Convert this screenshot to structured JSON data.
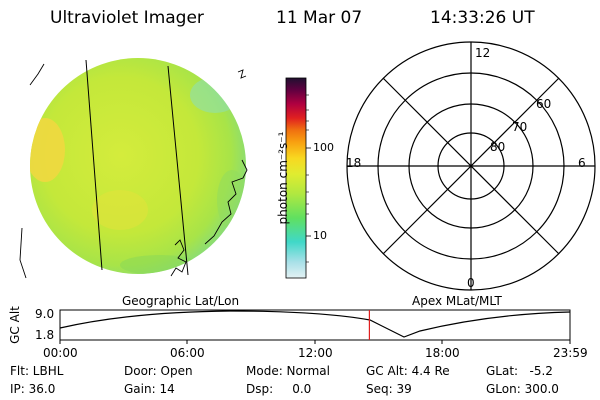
{
  "header": {
    "instrument": "Ultraviolet Imager",
    "date": "11 Mar 07",
    "time": "14:33:26 UT"
  },
  "colors": {
    "earth_base": "#c8ea3a",
    "colorbar": [
      "#d8ecf0",
      "#a8e0e8",
      "#40d8c8",
      "#60e060",
      "#b0e840",
      "#e0ec30",
      "#f8d820",
      "#f8a010",
      "#f07010",
      "#e02020",
      "#b00040",
      "#600040",
      "#201030"
    ]
  },
  "colorbar": {
    "unit_label": "photon cm⁻²s⁻¹",
    "ticks": [
      "100",
      "10"
    ]
  },
  "polar": {
    "mlt_labels": {
      "top": "12",
      "left": "18",
      "right": "6",
      "bottom": "0"
    },
    "lat_labels": [
      "60",
      "70",
      "80"
    ]
  },
  "timeline": {
    "left_label": "Geographic Lat/Lon",
    "right_label": "Apex MLat/MLT",
    "y_axis_label": "GC Alt",
    "y_ticks": [
      "9.0",
      "1.8"
    ],
    "x_ticks": [
      "00:00",
      "06:00",
      "12:00",
      "18:00",
      "23:59"
    ],
    "current_time_hours": 14.56
  },
  "info": {
    "filter": "Flt: LBHL",
    "door": "Door: Open",
    "mode": "Mode: Normal",
    "gc_alt": "GC Alt: 4.4 Re",
    "glat": "GLat:   -5.2",
    "ip": "IP: 36.0",
    "gain": "Gain: 14",
    "dsp": "Dsp:     0.0",
    "seq": "Seq: 39",
    "glon": "GLon: 300.0"
  }
}
